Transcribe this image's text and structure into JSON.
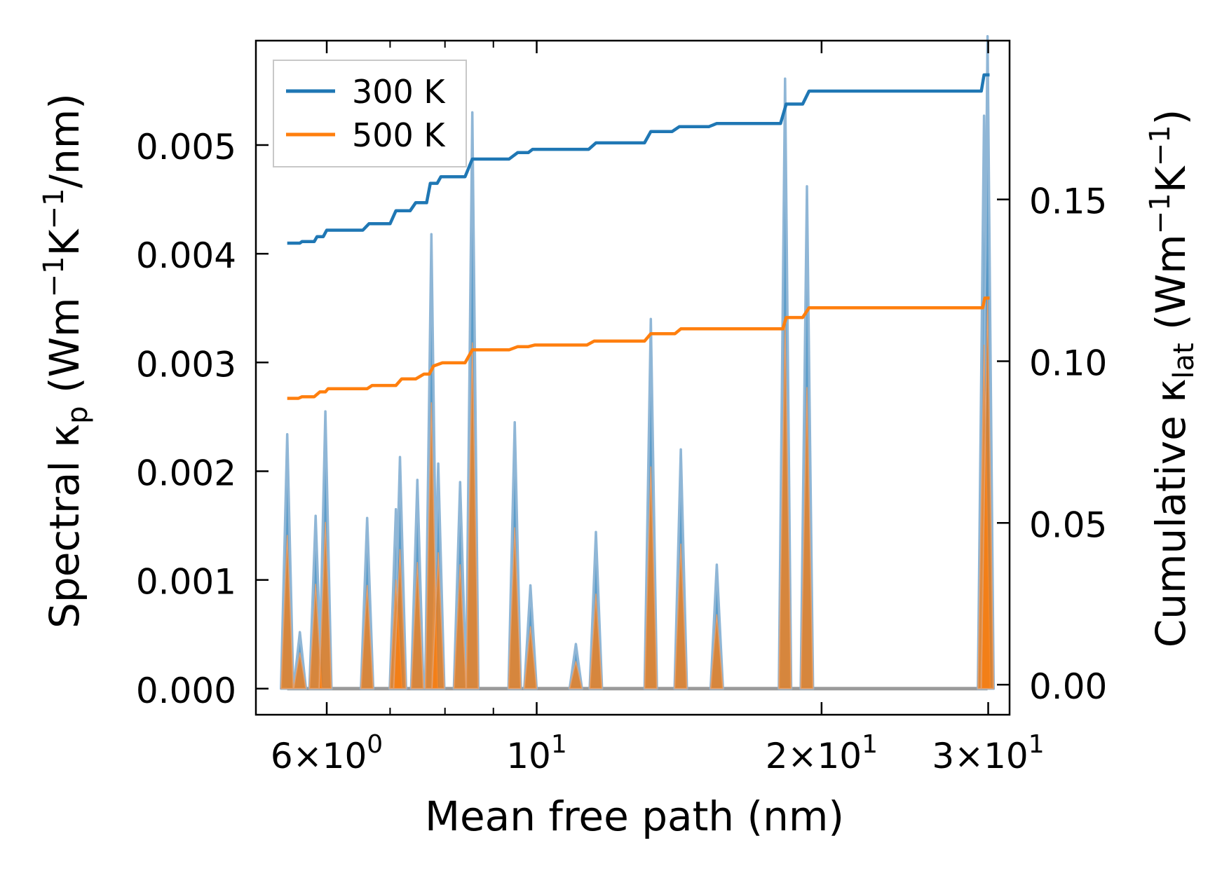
{
  "chart_data": {
    "type": "line",
    "xscale": "log",
    "xlim": [
      5.05,
      31.6
    ],
    "xlabel": "Mean free path (nm)",
    "xticks": [
      {
        "value": 6,
        "mant": "6",
        "exp": "0"
      },
      {
        "value": 10,
        "mant": "",
        "exp": "1"
      },
      {
        "value": 20,
        "mant": "2",
        "exp": "1"
      },
      {
        "value": 30,
        "mant": "3",
        "exp": "1"
      }
    ],
    "minor_xticks": [
      7,
      8,
      9,
      40
    ],
    "ylabel_left": {
      "pre": "Spectral κ",
      "sub": "p",
      "post_a": " (Wm",
      "sup1": "−1",
      "mid": "K",
      "sup2": "−1",
      "post_b": "/nm)"
    },
    "ylim_left": [
      -0.00024,
      0.00596
    ],
    "yticks_left": [
      "0.000",
      "0.001",
      "0.002",
      "0.003",
      "0.004",
      "0.005"
    ],
    "ylabel_right": {
      "pre": "Cumulative κ",
      "sub": "lat",
      "post_a": " (Wm",
      "sup1": "−1",
      "mid": "K",
      "sup2": "−1",
      "post_b": ")"
    },
    "ylim_right": [
      -0.0093,
      0.1991
    ],
    "yticks_right": [
      "0.00",
      "0.05",
      "0.10",
      "0.15"
    ],
    "legend": {
      "position": "top-left",
      "entries": [
        "300 K",
        "500 K"
      ]
    },
    "colors": {
      "300 K": "#1f77b4",
      "500 K": "#ff7f0e",
      "spectral_fill": "#7f7f7f"
    },
    "spectral_peaks": [
      {
        "x": 5.45,
        "k300": 0.00234,
        "k500": 0.00141
      },
      {
        "x": 5.62,
        "k300": 0.00052,
        "k500": 0.00033
      },
      {
        "x": 5.84,
        "k300": 0.00159,
        "k500": 0.00096
      },
      {
        "x": 5.98,
        "k300": 0.00255,
        "k500": 0.00153
      },
      {
        "x": 6.62,
        "k300": 0.00157,
        "k500": 0.00095
      },
      {
        "x": 7.1,
        "k300": 0.00165,
        "k500": 0.001
      },
      {
        "x": 7.17,
        "k300": 0.00213,
        "k500": 0.00128
      },
      {
        "x": 7.48,
        "k300": 0.00192,
        "k500": 0.00116
      },
      {
        "x": 7.74,
        "k300": 0.00418,
        "k500": 0.00263
      },
      {
        "x": 7.87,
        "k300": 0.00207,
        "k500": 0.00125
      },
      {
        "x": 8.3,
        "k300": 0.0019,
        "k500": 0.00114
      },
      {
        "x": 8.55,
        "k300": 0.0053,
        "k500": 0.00318
      },
      {
        "x": 9.48,
        "k300": 0.00245,
        "k500": 0.00148
      },
      {
        "x": 9.85,
        "k300": 0.00095,
        "k500": 0.00057
      },
      {
        "x": 11.0,
        "k300": 0.00041,
        "k500": 0.00025
      },
      {
        "x": 11.55,
        "k300": 0.00144,
        "k500": 0.00087
      },
      {
        "x": 13.2,
        "k300": 0.0034,
        "k500": 0.00204
      },
      {
        "x": 14.2,
        "k300": 0.0022,
        "k500": 0.00133
      },
      {
        "x": 15.5,
        "k300": 0.00114,
        "k500": 0.00068
      },
      {
        "x": 18.3,
        "k300": 0.00561,
        "k500": 0.00337
      },
      {
        "x": 19.3,
        "k300": 0.00462,
        "k500": 0.00277
      },
      {
        "x": 29.7,
        "k300": 0.00527,
        "k500": 0.00316
      },
      {
        "x": 29.95,
        "k300": 0.006,
        "k500": 0.0036
      }
    ],
    "cumulative": {
      "300 K": [
        [
          5.45,
          0.1365
        ],
        [
          5.62,
          0.1365
        ],
        [
          5.65,
          0.137
        ],
        [
          5.82,
          0.137
        ],
        [
          5.86,
          0.1385
        ],
        [
          5.95,
          0.1385
        ],
        [
          6.0,
          0.1405
        ],
        [
          6.55,
          0.1405
        ],
        [
          6.65,
          0.1425
        ],
        [
          7.0,
          0.1425
        ],
        [
          7.1,
          0.1465
        ],
        [
          7.35,
          0.1465
        ],
        [
          7.45,
          0.149
        ],
        [
          7.65,
          0.149
        ],
        [
          7.72,
          0.155
        ],
        [
          7.85,
          0.155
        ],
        [
          7.92,
          0.157
        ],
        [
          8.4,
          0.157
        ],
        [
          8.55,
          0.1625
        ],
        [
          9.35,
          0.1625
        ],
        [
          9.55,
          0.1645
        ],
        [
          9.8,
          0.1645
        ],
        [
          9.9,
          0.1655
        ],
        [
          11.35,
          0.1655
        ],
        [
          11.55,
          0.1675
        ],
        [
          13.0,
          0.1675
        ],
        [
          13.2,
          0.171
        ],
        [
          13.9,
          0.171
        ],
        [
          14.15,
          0.1725
        ],
        [
          15.2,
          0.1725
        ],
        [
          15.5,
          0.1735
        ],
        [
          18.1,
          0.1735
        ],
        [
          18.35,
          0.1795
        ],
        [
          19.1,
          0.1795
        ],
        [
          19.4,
          0.1835
        ],
        [
          29.5,
          0.1835
        ],
        [
          29.7,
          0.1885
        ],
        [
          30.1,
          0.1885
        ]
      ],
      "500 K": [
        [
          5.45,
          0.0885
        ],
        [
          5.6,
          0.0885
        ],
        [
          5.65,
          0.089
        ],
        [
          5.82,
          0.089
        ],
        [
          5.9,
          0.0905
        ],
        [
          5.98,
          0.0905
        ],
        [
          6.02,
          0.0915
        ],
        [
          6.62,
          0.0915
        ],
        [
          6.7,
          0.0925
        ],
        [
          7.1,
          0.0925
        ],
        [
          7.2,
          0.0945
        ],
        [
          7.45,
          0.0945
        ],
        [
          7.6,
          0.096
        ],
        [
          7.7,
          0.096
        ],
        [
          7.78,
          0.0985
        ],
        [
          7.95,
          0.0995
        ],
        [
          8.4,
          0.0995
        ],
        [
          8.55,
          0.1035
        ],
        [
          9.35,
          0.1035
        ],
        [
          9.55,
          0.1045
        ],
        [
          9.8,
          0.1045
        ],
        [
          9.95,
          0.105
        ],
        [
          11.3,
          0.105
        ],
        [
          11.5,
          0.1062
        ],
        [
          13.0,
          0.1062
        ],
        [
          13.2,
          0.1085
        ],
        [
          14.0,
          0.1085
        ],
        [
          14.2,
          0.11
        ],
        [
          18.2,
          0.11
        ],
        [
          18.35,
          0.1135
        ],
        [
          19.1,
          0.1135
        ],
        [
          19.4,
          0.1165
        ],
        [
          29.6,
          0.1165
        ],
        [
          29.75,
          0.1195
        ],
        [
          30.1,
          0.1195
        ]
      ]
    }
  }
}
